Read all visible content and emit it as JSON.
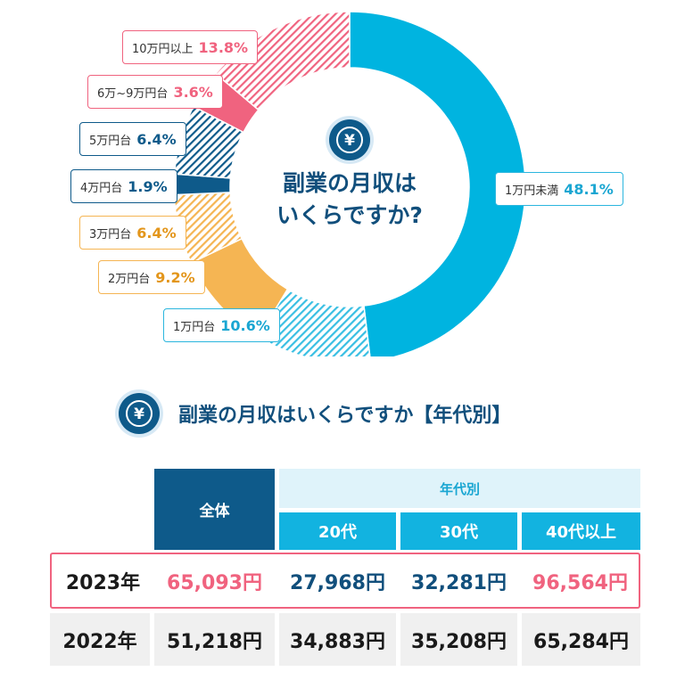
{
  "chart_data": {
    "type": "pie",
    "style": "donut",
    "title": "副業の月収はいくらですか?",
    "title_lines": [
      "副業の月収は",
      "いくらですか?"
    ],
    "slices": [
      {
        "label": "1万円未満",
        "value": 48.1,
        "display": "48.1%",
        "color": "#00b4e0",
        "pattern": "solid"
      },
      {
        "label": "1万円台",
        "value": 10.6,
        "display": "10.6%",
        "color": "#39bfe3",
        "pattern": "hatch"
      },
      {
        "label": "2万円台",
        "value": 9.2,
        "display": "9.2%",
        "color": "#f5b553",
        "pattern": "solid"
      },
      {
        "label": "3万円台",
        "value": 6.4,
        "display": "6.4%",
        "color": "#f5b553",
        "pattern": "hatch"
      },
      {
        "label": "4万円台",
        "value": 1.9,
        "display": "1.9%",
        "color": "#0e5a8a",
        "pattern": "solid"
      },
      {
        "label": "5万円台",
        "value": 6.4,
        "display": "6.4%",
        "color": "#0e5a8a",
        "pattern": "hatch"
      },
      {
        "label": "6万~9万円台",
        "value": 3.6,
        "display": "3.6%",
        "color": "#f0637f",
        "pattern": "solid"
      },
      {
        "label": "10万円以上",
        "value": 13.8,
        "display": "13.8%",
        "color": "#f0637f",
        "pattern": "hatch"
      }
    ]
  },
  "icons": {
    "yen": "yen-icon",
    "yen_symbol": "¥"
  },
  "table": {
    "heading": "副業の月収はいくらですか【年代別】",
    "header_all": "全体",
    "header_group": "年代別",
    "header_ages": [
      "20代",
      "30代",
      "40代以上"
    ],
    "rows": [
      {
        "year": "2023年",
        "all": "65,093円",
        "age20": "27,968円",
        "age30": "32,281円",
        "age40": "96,564円"
      },
      {
        "year": "2022年",
        "all": "51,218円",
        "age20": "34,883円",
        "age30": "35,208円",
        "age40": "65,284円"
      }
    ]
  },
  "colors": {
    "navy": "#0e5a8a",
    "cyan": "#12b3e0",
    "pink": "#f0637f",
    "orange": "#f5b553"
  }
}
